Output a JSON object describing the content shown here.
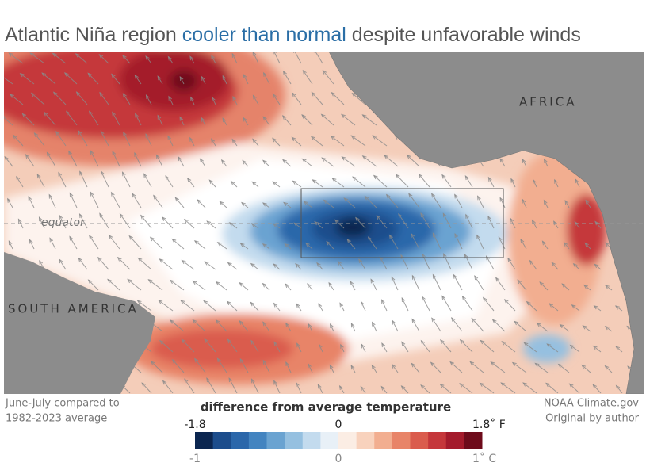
{
  "header": {
    "title_start": "Atlantic Niña region ",
    "title_highlight": "cooler than normal",
    "title_end": " despite unfavorable winds"
  },
  "map": {
    "labels": {
      "africa": "AFRICA",
      "south_america": "SOUTH AMERICA",
      "equator": "equator"
    }
  },
  "notes": {
    "left": [
      "June-July compared to",
      "1982-2023 average"
    ],
    "right": [
      "NOAA Climate.gov",
      "Original by author"
    ]
  },
  "legend": {
    "title": "difference from average temperature",
    "colors": [
      "#0b2650",
      "#1c4d8c",
      "#2b67aa",
      "#4384c0",
      "#6aa3d1",
      "#95c0e0",
      "#c3dbee",
      "#e8f0f7",
      "#fbede4",
      "#f8d2bd",
      "#f2ae90",
      "#e88468",
      "#da5c4d",
      "#c5373b",
      "#a41b2c",
      "#6e0b1b"
    ],
    "fahrenheit_range": [
      -1.8,
      1.8
    ],
    "fahrenheit_ticks": [
      -1.8,
      0,
      {
        "value": 1.8,
        "label": "1.8˚ F"
      }
    ],
    "celsius_range": [
      -1,
      1
    ],
    "celsius_ticks": [
      -1,
      0,
      {
        "value": 1,
        "label": "1˚ C"
      }
    ]
  }
}
